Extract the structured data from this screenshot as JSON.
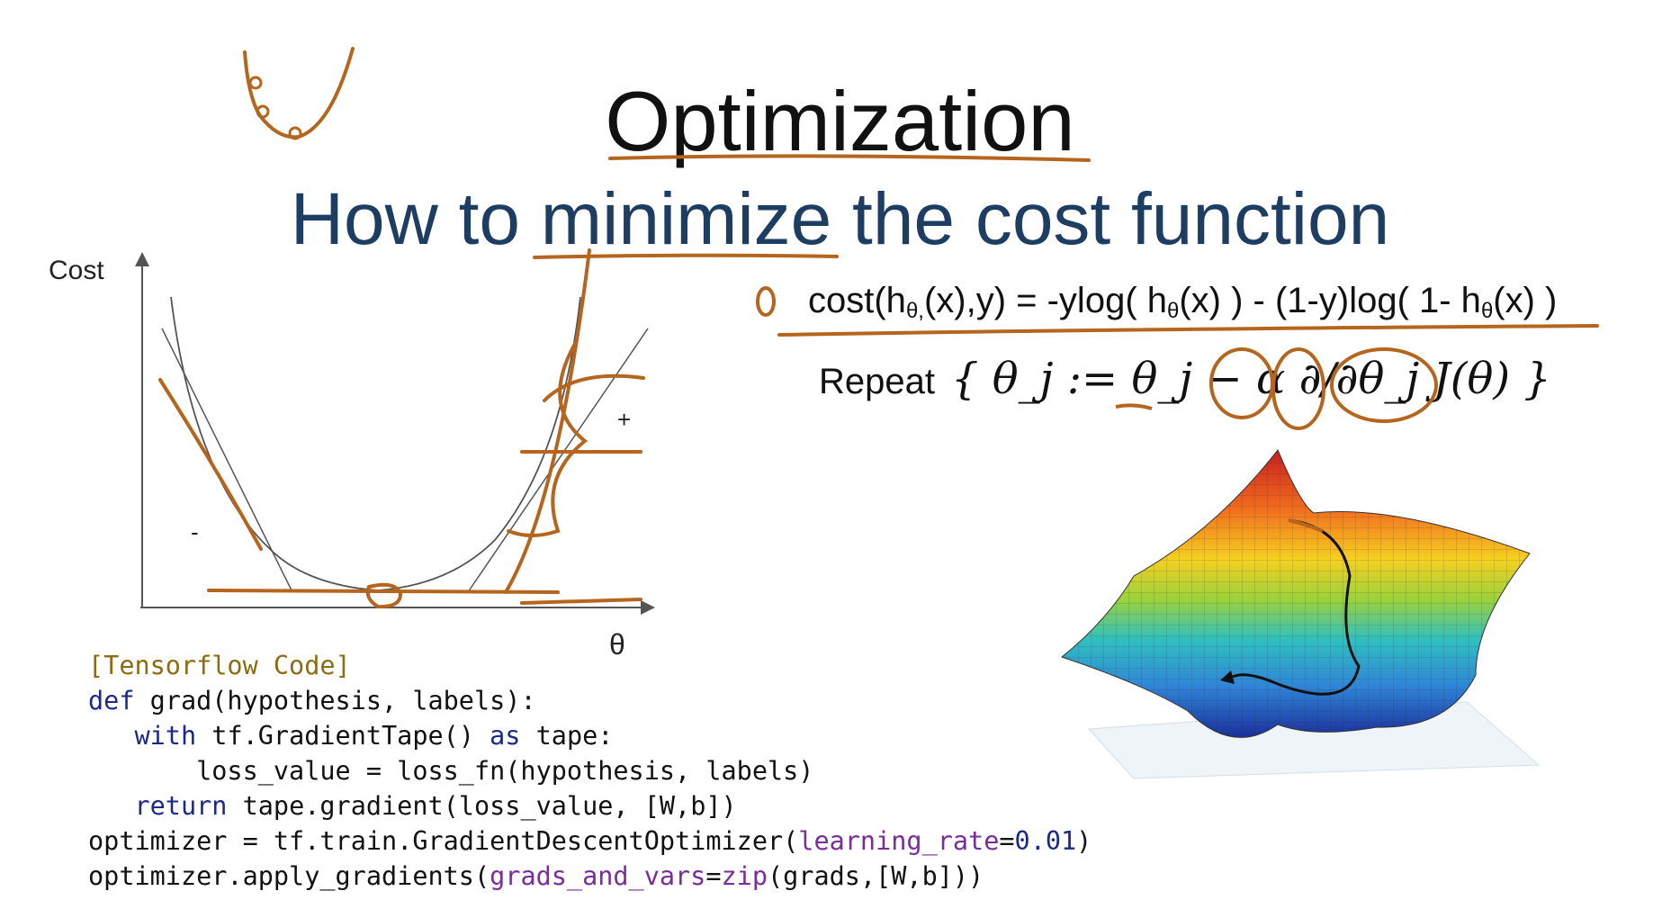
{
  "slide": {
    "title": "Optimization",
    "subtitle": "How to minimize the cost function"
  },
  "graph": {
    "y_axis_label": "Cost",
    "x_axis_label": "θ",
    "negative_sign": "-",
    "positive_sign": "+"
  },
  "formulas": {
    "cost": {
      "p1": "cost(h",
      "sub1": "θ,",
      "p2": "(x),y) = -ylog( h",
      "sub2": "θ",
      "p3": "(x) ) - (1-y)log( 1- h",
      "sub3": "θ",
      "p4": "(x) )"
    },
    "repeat": {
      "label": "Repeat",
      "update_rule": "{ θ_j := θ_j − α ∂/∂θ_j J(θ) }"
    }
  },
  "code": {
    "header": "[Tensorflow Code]",
    "line1": {
      "kw": "def",
      "rest": " grad(hypothesis, labels):"
    },
    "line2": {
      "indent": "   ",
      "kw1": "with",
      "mid": " tf.GradientTape() ",
      "kw2": "as",
      "rest": " tape:"
    },
    "line3": "       loss_value = loss_fn(hypothesis, labels)",
    "line4": {
      "indent": "   ",
      "kw": "return",
      "rest": " tape.gradient(loss_value, [W,b])"
    },
    "line5": {
      "pre": "optimizer = tf.train.GradientDescentOptimizer(",
      "param": "learning_rate",
      "eq": "=",
      "value": "0.01",
      "post": ")"
    },
    "line6": {
      "pre": "optimizer.apply_gradients(",
      "param": "grads_and_vars",
      "eq": "=",
      "fn": "zip",
      "post": "(grads,[W,b]))"
    }
  },
  "colors": {
    "ink": "#b5651d",
    "title": "#111111",
    "subtitle": "#1d3d63",
    "keyword": "#1b2a8a",
    "code_header": "#8a6d12",
    "code_param": "#7a2c9c"
  }
}
